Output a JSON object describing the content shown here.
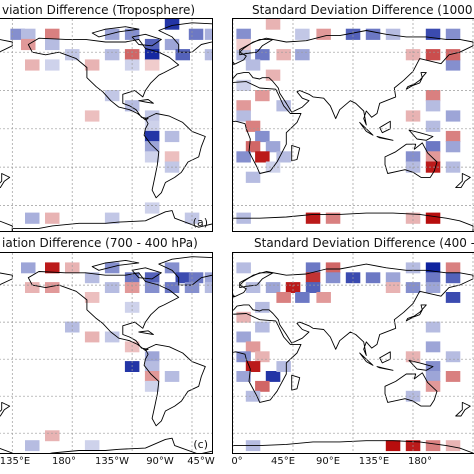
{
  "panels": [
    {
      "id": "a",
      "title": "viation Difference (Troposphere)",
      "label": "(a)",
      "cells": [
        {
          "lon": -176,
          "lat": 74,
          "v": -0.5
        },
        {
          "lon": -168,
          "lat": 74,
          "v": -0.3
        },
        {
          "lon": -150,
          "lat": 74,
          "v": 0.5
        },
        {
          "lon": -168,
          "lat": 66,
          "v": 0.4
        },
        {
          "lon": -150,
          "lat": 66,
          "v": -0.3
        },
        {
          "lon": -105,
          "lat": 74,
          "v": -0.4
        },
        {
          "lon": -90,
          "lat": 74,
          "v": -0.5
        },
        {
          "lon": -60,
          "lat": 82,
          "v": -0.9
        },
        {
          "lon": -42,
          "lat": 74,
          "v": -0.6
        },
        {
          "lon": -75,
          "lat": 66,
          "v": -0.7
        },
        {
          "lon": -60,
          "lat": 66,
          "v": -0.4
        },
        {
          "lon": -90,
          "lat": 58,
          "v": 0.6
        },
        {
          "lon": -75,
          "lat": 58,
          "v": -0.95
        },
        {
          "lon": -52,
          "lat": 58,
          "v": -0.7
        },
        {
          "lon": -105,
          "lat": 58,
          "v": -0.3
        },
        {
          "lon": -120,
          "lat": 50,
          "v": 0.3
        },
        {
          "lon": -135,
          "lat": 58,
          "v": -0.25
        },
        {
          "lon": -90,
          "lat": 50,
          "v": -0.2
        },
        {
          "lon": -75,
          "lat": 50,
          "v": 0.2
        },
        {
          "lon": -30,
          "lat": 74,
          "v": -0.35
        },
        {
          "lon": -30,
          "lat": 58,
          "v": -0.3
        },
        {
          "lon": -165,
          "lat": 50,
          "v": 0.3
        },
        {
          "lon": -150,
          "lat": 50,
          "v": -0.2
        },
        {
          "lon": -105,
          "lat": 26,
          "v": -0.25
        },
        {
          "lon": -90,
          "lat": 18,
          "v": -0.3
        },
        {
          "lon": -75,
          "lat": 10,
          "v": -0.25
        },
        {
          "lon": -120,
          "lat": 10,
          "v": 0.25
        },
        {
          "lon": -75,
          "lat": 2,
          "v": -0.2
        },
        {
          "lon": -75,
          "lat": -6,
          "v": -0.9
        },
        {
          "lon": -60,
          "lat": -6,
          "v": -0.3
        },
        {
          "lon": -75,
          "lat": -14,
          "v": -0.4
        },
        {
          "lon": -60,
          "lat": -22,
          "v": 0.25
        },
        {
          "lon": -75,
          "lat": -22,
          "v": -0.2
        },
        {
          "lon": -60,
          "lat": -30,
          "v": -0.25
        },
        {
          "lon": -165,
          "lat": -70,
          "v": -0.35
        },
        {
          "lon": -150,
          "lat": -70,
          "v": 0.3
        },
        {
          "lon": -105,
          "lat": -70,
          "v": -0.25
        },
        {
          "lon": -75,
          "lat": -62,
          "v": -0.2
        },
        {
          "lon": -45,
          "lat": -70,
          "v": -0.25
        }
      ]
    },
    {
      "id": "b",
      "title": "Standard Deviation Difference (1000",
      "label": "",
      "cells": [
        {
          "lon": 8,
          "lat": 74,
          "v": -0.5
        },
        {
          "lon": 30,
          "lat": 82,
          "v": 0.3
        },
        {
          "lon": 52,
          "lat": 74,
          "v": -0.25
        },
        {
          "lon": 68,
          "lat": 74,
          "v": 0.4
        },
        {
          "lon": 90,
          "lat": 74,
          "v": -0.7
        },
        {
          "lon": 105,
          "lat": 74,
          "v": -0.6
        },
        {
          "lon": 120,
          "lat": 74,
          "v": -0.3
        },
        {
          "lon": 150,
          "lat": 74,
          "v": -0.8
        },
        {
          "lon": 165,
          "lat": 74,
          "v": -0.5
        },
        {
          "lon": 8,
          "lat": 58,
          "v": -0.3
        },
        {
          "lon": 22,
          "lat": 58,
          "v": -0.6
        },
        {
          "lon": 38,
          "lat": 58,
          "v": 0.3
        },
        {
          "lon": 52,
          "lat": 58,
          "v": -0.4
        },
        {
          "lon": 8,
          "lat": 66,
          "v": 0.2
        },
        {
          "lon": 135,
          "lat": 58,
          "v": 0.3
        },
        {
          "lon": 150,
          "lat": 58,
          "v": 0.7
        },
        {
          "lon": 165,
          "lat": 50,
          "v": -0.5
        },
        {
          "lon": 165,
          "lat": 58,
          "v": 0.6
        },
        {
          "lon": 15,
          "lat": 50,
          "v": -0.3
        },
        {
          "lon": 30,
          "lat": 42,
          "v": 0.3
        },
        {
          "lon": 8,
          "lat": 34,
          "v": -0.2
        },
        {
          "lon": 22,
          "lat": 26,
          "v": 0.4
        },
        {
          "lon": 38,
          "lat": 18,
          "v": -0.3
        },
        {
          "lon": 8,
          "lat": 18,
          "v": 0.4
        },
        {
          "lon": 8,
          "lat": 10,
          "v": -0.3
        },
        {
          "lon": 15,
          "lat": 2,
          "v": 0.5
        },
        {
          "lon": 22,
          "lat": -6,
          "v": -0.5
        },
        {
          "lon": 15,
          "lat": -14,
          "v": 0.6
        },
        {
          "lon": 30,
          "lat": -14,
          "v": -0.4
        },
        {
          "lon": 22,
          "lat": -22,
          "v": 0.9
        },
        {
          "lon": 38,
          "lat": -22,
          "v": -0.3
        },
        {
          "lon": 8,
          "lat": -22,
          "v": -0.5
        },
        {
          "lon": 30,
          "lat": -30,
          "v": -0.2
        },
        {
          "lon": 15,
          "lat": -38,
          "v": -0.3
        },
        {
          "lon": 150,
          "lat": 26,
          "v": 0.5
        },
        {
          "lon": 150,
          "lat": 18,
          "v": -0.3
        },
        {
          "lon": 135,
          "lat": 10,
          "v": 0.3
        },
        {
          "lon": 165,
          "lat": 10,
          "v": -0.4
        },
        {
          "lon": 150,
          "lat": 2,
          "v": -0.3
        },
        {
          "lon": 165,
          "lat": -6,
          "v": 0.5
        },
        {
          "lon": 150,
          "lat": -14,
          "v": -0.6
        },
        {
          "lon": 165,
          "lat": -14,
          "v": -0.4
        },
        {
          "lon": 150,
          "lat": -22,
          "v": 0.4
        },
        {
          "lon": 135,
          "lat": -22,
          "v": -0.5
        },
        {
          "lon": 150,
          "lat": -30,
          "v": 0.9
        },
        {
          "lon": 135,
          "lat": -30,
          "v": -0.3
        },
        {
          "lon": 165,
          "lat": -30,
          "v": -0.3
        },
        {
          "lon": 60,
          "lat": -70,
          "v": 0.9
        },
        {
          "lon": 75,
          "lat": -70,
          "v": 0.5
        },
        {
          "lon": 135,
          "lat": -70,
          "v": 0.3
        },
        {
          "lon": 150,
          "lat": -70,
          "v": 0.95
        },
        {
          "lon": 8,
          "lat": -70,
          "v": -0.3
        }
      ]
    },
    {
      "id": "c",
      "title": "iation Difference (700 - 400 hPa)",
      "label": "(c)",
      "cells": [
        {
          "lon": -168,
          "lat": 74,
          "v": -0.4
        },
        {
          "lon": -150,
          "lat": 74,
          "v": 0.9
        },
        {
          "lon": -135,
          "lat": 74,
          "v": 0.3
        },
        {
          "lon": -120,
          "lat": 66,
          "v": -0.3
        },
        {
          "lon": -105,
          "lat": 74,
          "v": -0.5
        },
        {
          "lon": -90,
          "lat": 66,
          "v": -0.6
        },
        {
          "lon": -75,
          "lat": 66,
          "v": -0.7
        },
        {
          "lon": -60,
          "lat": 74,
          "v": -0.5
        },
        {
          "lon": -52,
          "lat": 66,
          "v": -0.8
        },
        {
          "lon": -42,
          "lat": 66,
          "v": -0.6
        },
        {
          "lon": -30,
          "lat": 66,
          "v": -0.4
        },
        {
          "lon": -75,
          "lat": 58,
          "v": -0.5
        },
        {
          "lon": -60,
          "lat": 58,
          "v": -0.6
        },
        {
          "lon": -90,
          "lat": 58,
          "v": 0.4
        },
        {
          "lon": -105,
          "lat": 58,
          "v": -0.3
        },
        {
          "lon": -45,
          "lat": 58,
          "v": -0.5
        },
        {
          "lon": -30,
          "lat": 58,
          "v": -0.3
        },
        {
          "lon": -150,
          "lat": 58,
          "v": 0.4
        },
        {
          "lon": -165,
          "lat": 58,
          "v": 0.3
        },
        {
          "lon": -120,
          "lat": 50,
          "v": 0.25
        },
        {
          "lon": -90,
          "lat": 42,
          "v": -0.2
        },
        {
          "lon": -135,
          "lat": 26,
          "v": -0.3
        },
        {
          "lon": -120,
          "lat": 18,
          "v": 0.3
        },
        {
          "lon": -105,
          "lat": 18,
          "v": -0.25
        },
        {
          "lon": -90,
          "lat": 10,
          "v": 0.25
        },
        {
          "lon": -75,
          "lat": 2,
          "v": -0.4
        },
        {
          "lon": -90,
          "lat": -6,
          "v": -0.9
        },
        {
          "lon": -75,
          "lat": -6,
          "v": -0.3
        },
        {
          "lon": -75,
          "lat": -14,
          "v": 0.4
        },
        {
          "lon": -60,
          "lat": -14,
          "v": -0.3
        },
        {
          "lon": -75,
          "lat": -22,
          "v": -0.2
        },
        {
          "lon": -165,
          "lat": -70,
          "v": -0.3
        },
        {
          "lon": -150,
          "lat": -62,
          "v": 0.3
        },
        {
          "lon": -120,
          "lat": -70,
          "v": -0.2
        }
      ]
    },
    {
      "id": "d",
      "title": "Standard Deviation Difference (400 -",
      "label": "",
      "cells": [
        {
          "lon": 8,
          "lat": 74,
          "v": -0.3
        },
        {
          "lon": 60,
          "lat": 74,
          "v": -0.6
        },
        {
          "lon": 75,
          "lat": 74,
          "v": 0.6
        },
        {
          "lon": 60,
          "lat": 66,
          "v": 0.8
        },
        {
          "lon": 75,
          "lat": 66,
          "v": -0.5
        },
        {
          "lon": 90,
          "lat": 66,
          "v": -0.8
        },
        {
          "lon": 105,
          "lat": 66,
          "v": -0.6
        },
        {
          "lon": 120,
          "lat": 66,
          "v": -0.4
        },
        {
          "lon": 135,
          "lat": 74,
          "v": -0.3
        },
        {
          "lon": 150,
          "lat": 74,
          "v": -0.98
        },
        {
          "lon": 165,
          "lat": 74,
          "v": 0.5
        },
        {
          "lon": 150,
          "lat": 66,
          "v": -0.6
        },
        {
          "lon": 165,
          "lat": 66,
          "v": -0.7
        },
        {
          "lon": 135,
          "lat": 58,
          "v": -0.5
        },
        {
          "lon": 150,
          "lat": 58,
          "v": -0.4
        },
        {
          "lon": 120,
          "lat": 58,
          "v": 0.3
        },
        {
          "lon": 165,
          "lat": 50,
          "v": -0.8
        },
        {
          "lon": 60,
          "lat": 58,
          "v": -0.7
        },
        {
          "lon": 45,
          "lat": 58,
          "v": 0.9
        },
        {
          "lon": 30,
          "lat": 58,
          "v": -0.4
        },
        {
          "lon": 15,
          "lat": 58,
          "v": -0.3
        },
        {
          "lon": 38,
          "lat": 50,
          "v": 0.5
        },
        {
          "lon": 52,
          "lat": 50,
          "v": -0.6
        },
        {
          "lon": 68,
          "lat": 50,
          "v": 0.4
        },
        {
          "lon": 22,
          "lat": 42,
          "v": -0.3
        },
        {
          "lon": 8,
          "lat": 34,
          "v": 0.3
        },
        {
          "lon": 22,
          "lat": 26,
          "v": -0.3
        },
        {
          "lon": 8,
          "lat": 18,
          "v": -0.4
        },
        {
          "lon": 15,
          "lat": 10,
          "v": 0.4
        },
        {
          "lon": 8,
          "lat": 2,
          "v": -0.5
        },
        {
          "lon": 22,
          "lat": 2,
          "v": 0.3
        },
        {
          "lon": 15,
          "lat": -6,
          "v": 0.9
        },
        {
          "lon": 8,
          "lat": -14,
          "v": -0.4
        },
        {
          "lon": 30,
          "lat": -14,
          "v": -0.9
        },
        {
          "lon": 22,
          "lat": -22,
          "v": 0.6
        },
        {
          "lon": 38,
          "lat": -6,
          "v": -0.3
        },
        {
          "lon": 15,
          "lat": -30,
          "v": -0.3
        },
        {
          "lon": 150,
          "lat": 26,
          "v": -0.3
        },
        {
          "lon": 150,
          "lat": 10,
          "v": -0.4
        },
        {
          "lon": 135,
          "lat": 2,
          "v": 0.3
        },
        {
          "lon": 165,
          "lat": 2,
          "v": -0.3
        },
        {
          "lon": 150,
          "lat": -6,
          "v": -0.5
        },
        {
          "lon": 165,
          "lat": -14,
          "v": 0.5
        },
        {
          "lon": 150,
          "lat": -14,
          "v": -0.4
        },
        {
          "lon": 150,
          "lat": -22,
          "v": 0.4
        },
        {
          "lon": 135,
          "lat": -30,
          "v": -0.3
        },
        {
          "lon": 120,
          "lat": -70,
          "v": 0.95
        },
        {
          "lon": 135,
          "lat": -70,
          "v": 0.9
        },
        {
          "lon": 150,
          "lat": -70,
          "v": 0.5
        },
        {
          "lon": 165,
          "lat": -70,
          "v": 0.3
        },
        {
          "lon": 15,
          "lat": -70,
          "v": -0.3
        }
      ]
    }
  ],
  "bottom_left_ticks": [
    "135°E",
    "180°",
    "135°W",
    "90°W",
    "45°W"
  ],
  "bottom_right_ticks": [
    "0°",
    "45°E",
    "90°E",
    "135°E",
    "180°"
  ],
  "colors": {
    "negative": "#0a1e9c",
    "positive": "#b30000",
    "grid": "#9a9a9a",
    "coast": "#000000"
  }
}
